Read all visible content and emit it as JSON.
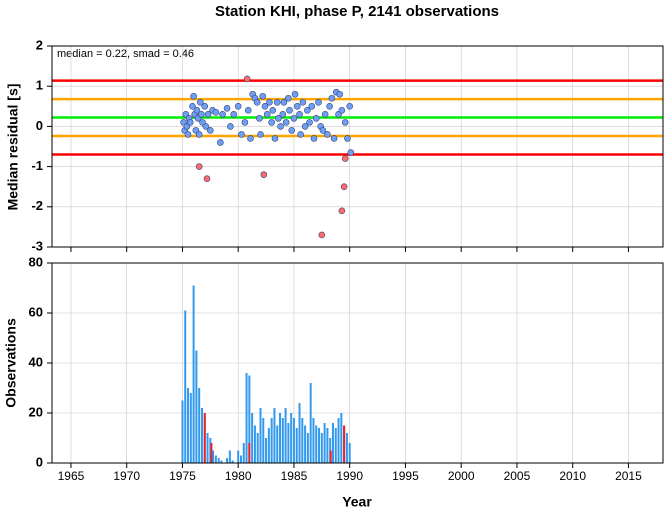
{
  "chart_data": [
    {
      "type": "scatter",
      "title": "Station KHI, phase P, 2141 observations",
      "annotation": "median = 0.22, smad = 0.46",
      "y_label": "Median residual [s]",
      "xlim": [
        1963.3,
        2018.1
      ],
      "xticks": [
        1965,
        1970,
        1975,
        1980,
        1985,
        1990,
        1995,
        2000,
        2005,
        2010,
        2015
      ],
      "ylim": [
        -3,
        2
      ],
      "yticks": [
        -3,
        -2,
        -1,
        0,
        1,
        2
      ],
      "grid": true,
      "hlines": [
        {
          "value": 1.14,
          "color": "#ff0000"
        },
        {
          "value": 0.68,
          "color": "#ffa500"
        },
        {
          "value": 0.22,
          "color": "#00ee00"
        },
        {
          "value": -0.24,
          "color": "#ffa500"
        },
        {
          "value": -0.7,
          "color": "#ff0000"
        }
      ],
      "series": [
        {
          "color": "#6f9ef5",
          "x": [
            1975.1,
            1975.2,
            1975.3,
            1975.4,
            1975.5,
            1975.6,
            1975.7,
            1975.9,
            1976.0,
            1976.1,
            1976.2,
            1976.3,
            1976.4,
            1976.5,
            1976.6,
            1976.7,
            1976.8,
            1977.0,
            1977.1,
            1977.3,
            1977.5,
            1977.7,
            1978.0,
            1978.4,
            1978.6,
            1979.0,
            1979.3,
            1979.6,
            1980.0,
            1980.3,
            1980.6,
            1980.9,
            1981.1,
            1981.3,
            1981.5,
            1981.7,
            1981.9,
            1982.0,
            1982.2,
            1982.4,
            1982.6,
            1982.8,
            1983.0,
            1983.1,
            1983.3,
            1983.5,
            1983.6,
            1983.8,
            1984.0,
            1984.1,
            1984.3,
            1984.5,
            1984.6,
            1984.8,
            1985.0,
            1985.1,
            1985.3,
            1985.5,
            1985.6,
            1985.8,
            1986.0,
            1986.2,
            1986.4,
            1986.6,
            1986.8,
            1987.0,
            1987.2,
            1987.4,
            1987.6,
            1987.8,
            1988.0,
            1988.2,
            1988.4,
            1988.6,
            1988.8,
            1989.0,
            1989.1,
            1989.3,
            1989.6,
            1989.8,
            1990.0,
            1990.1
          ],
          "values": [
            0.1,
            -0.1,
            0.3,
            0.0,
            -0.2,
            0.2,
            0.1,
            0.5,
            0.75,
            0.3,
            -0.1,
            0.4,
            0.2,
            -0.2,
            0.6,
            0.3,
            0.1,
            0.5,
            0.0,
            0.3,
            -0.1,
            0.4,
            0.35,
            -0.4,
            0.3,
            0.45,
            0.0,
            0.3,
            0.5,
            -0.2,
            0.1,
            0.4,
            -0.3,
            0.8,
            0.7,
            0.6,
            0.2,
            -0.2,
            0.75,
            0.5,
            0.3,
            0.6,
            0.1,
            0.4,
            -0.3,
            0.6,
            0.2,
            0.0,
            0.3,
            0.6,
            0.1,
            0.7,
            0.4,
            -0.1,
            0.2,
            0.8,
            0.5,
            0.3,
            -0.2,
            0.6,
            0.0,
            0.4,
            0.1,
            0.5,
            -0.3,
            0.2,
            0.6,
            0.0,
            -0.1,
            0.3,
            -0.2,
            0.5,
            0.7,
            -0.3,
            0.85,
            0.3,
            0.8,
            0.4,
            0.1,
            -0.3,
            0.5,
            -0.65
          ]
        },
        {
          "color": "#ff6b6b",
          "x": [
            1976.5,
            1977.2,
            1980.8,
            1982.3,
            1987.5,
            1989.3,
            1989.5,
            1989.6
          ],
          "values": [
            -1.0,
            -1.3,
            1.18,
            -1.2,
            -2.7,
            -2.1,
            -1.5,
            -0.8
          ]
        }
      ]
    },
    {
      "type": "bar",
      "y_label": "Observations",
      "x_label": "Year",
      "xlim": [
        1963.3,
        2018.1
      ],
      "xticks": [
        1965,
        1970,
        1975,
        1980,
        1985,
        1990,
        1995,
        2000,
        2005,
        2010,
        2015
      ],
      "ylim": [
        0,
        80
      ],
      "yticks": [
        0,
        20,
        40,
        60,
        80
      ],
      "grid": true,
      "series": [
        {
          "color": "#3399ee",
          "x": [
            1975.0,
            1975.25,
            1975.5,
            1975.75,
            1976.0,
            1976.25,
            1976.5,
            1976.75,
            1977.0,
            1977.25,
            1977.5,
            1977.75,
            1978.0,
            1978.25,
            1978.5,
            1978.75,
            1979.0,
            1979.25,
            1979.5,
            1979.75,
            1980.0,
            1980.25,
            1980.5,
            1980.75,
            1981.0,
            1981.25,
            1981.5,
            1981.75,
            1982.0,
            1982.25,
            1982.5,
            1982.75,
            1983.0,
            1983.25,
            1983.5,
            1983.75,
            1984.0,
            1984.25,
            1984.5,
            1984.75,
            1985.0,
            1985.25,
            1985.5,
            1985.75,
            1986.0,
            1986.25,
            1986.5,
            1986.75,
            1987.0,
            1987.25,
            1987.5,
            1987.75,
            1988.0,
            1988.25,
            1988.5,
            1988.75,
            1989.0,
            1989.25,
            1989.5,
            1989.75,
            1990.0
          ],
          "values": [
            25,
            61,
            30,
            28,
            71,
            45,
            30,
            22,
            20,
            12,
            10,
            5,
            3,
            2,
            1,
            0,
            2,
            5,
            1,
            0,
            5,
            3,
            8,
            36,
            35,
            20,
            15,
            12,
            22,
            18,
            10,
            14,
            18,
            22,
            15,
            20,
            18,
            22,
            16,
            20,
            18,
            14,
            24,
            18,
            15,
            12,
            32,
            18,
            15,
            14,
            12,
            16,
            14,
            10,
            16,
            14,
            18,
            20,
            15,
            12,
            8
          ]
        },
        {
          "color": "#ee2222",
          "x": [
            1977.0,
            1977.6,
            1981.0,
            1988.3,
            1989.5
          ],
          "values": [
            20,
            8,
            8,
            5,
            15
          ]
        }
      ]
    }
  ]
}
